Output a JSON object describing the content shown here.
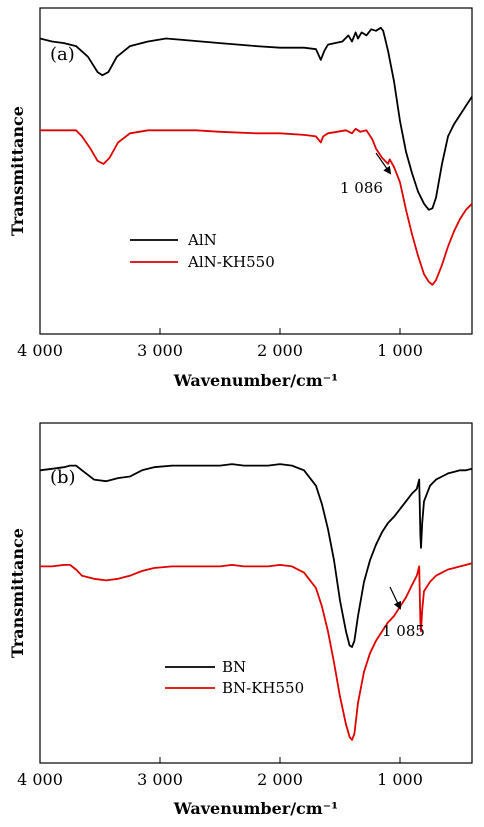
{
  "chart_data": [
    {
      "type": "line",
      "panel_label": "(a)",
      "xlabel": "Wavenumber/cm⁻¹",
      "ylabel": "Transmittance",
      "xlim": [
        4000,
        400
      ],
      "x_reversed": true,
      "ylim": [
        0,
        100
      ],
      "yticks_shown": false,
      "xticks": [
        4000,
        3000,
        2000,
        1000
      ],
      "xtick_labels": [
        "4 000",
        "3 000",
        "2 000",
        "1 000"
      ],
      "grid": false,
      "legend_position": "lower-left",
      "series": [
        {
          "name": "AlN",
          "color": "#000000",
          "points": [
            [
              4000,
              92
            ],
            [
              3900,
              91
            ],
            [
              3800,
              90.5
            ],
            [
              3700,
              89.5
            ],
            [
              3600,
              86
            ],
            [
              3520,
              81
            ],
            [
              3480,
              80
            ],
            [
              3430,
              81
            ],
            [
              3360,
              86
            ],
            [
              3250,
              89.5
            ],
            [
              3100,
              91
            ],
            [
              2950,
              92
            ],
            [
              2800,
              91.5
            ],
            [
              2500,
              90.5
            ],
            [
              2200,
              89.5
            ],
            [
              2000,
              89
            ],
            [
              1800,
              89
            ],
            [
              1700,
              88.5
            ],
            [
              1660,
              85
            ],
            [
              1630,
              88
            ],
            [
              1600,
              90
            ],
            [
              1480,
              91
            ],
            [
              1430,
              93
            ],
            [
              1400,
              91
            ],
            [
              1370,
              94
            ],
            [
              1350,
              92
            ],
            [
              1320,
              94
            ],
            [
              1280,
              93
            ],
            [
              1240,
              95
            ],
            [
              1200,
              94.5
            ],
            [
              1160,
              95.5
            ],
            [
              1140,
              94.5
            ],
            [
              1100,
              88
            ],
            [
              1050,
              78
            ],
            [
              1000,
              65
            ],
            [
              950,
              55
            ],
            [
              900,
              48
            ],
            [
              850,
              42
            ],
            [
              800,
              38
            ],
            [
              760,
              36
            ],
            [
              730,
              36.5
            ],
            [
              700,
              40
            ],
            [
              650,
              51
            ],
            [
              600,
              60
            ],
            [
              550,
              64
            ],
            [
              500,
              67
            ],
            [
              450,
              70
            ],
            [
              400,
              73
            ]
          ]
        },
        {
          "name": "AlN-KH550",
          "color": "#e00000",
          "points": [
            [
              4000,
              62
            ],
            [
              3900,
              62
            ],
            [
              3800,
              62
            ],
            [
              3700,
              62
            ],
            [
              3650,
              60
            ],
            [
              3580,
              56
            ],
            [
              3520,
              52
            ],
            [
              3470,
              51
            ],
            [
              3420,
              53
            ],
            [
              3350,
              58
            ],
            [
              3250,
              61
            ],
            [
              3100,
              62
            ],
            [
              2900,
              62
            ],
            [
              2700,
              62
            ],
            [
              2500,
              61.5
            ],
            [
              2200,
              61
            ],
            [
              2000,
              61
            ],
            [
              1800,
              60.5
            ],
            [
              1700,
              60
            ],
            [
              1660,
              58
            ],
            [
              1640,
              60
            ],
            [
              1600,
              61
            ],
            [
              1450,
              62
            ],
            [
              1400,
              61
            ],
            [
              1370,
              62.5
            ],
            [
              1330,
              61.5
            ],
            [
              1280,
              62
            ],
            [
              1230,
              59
            ],
            [
              1200,
              56
            ],
            [
              1150,
              53
            ],
            [
              1100,
              51
            ],
            [
              1086,
              52.5
            ],
            [
              1050,
              50
            ],
            [
              1000,
              45
            ],
            [
              950,
              36
            ],
            [
              900,
              28
            ],
            [
              850,
              21
            ],
            [
              800,
              15
            ],
            [
              760,
              12.5
            ],
            [
              730,
              11.5
            ],
            [
              700,
              13
            ],
            [
              650,
              18
            ],
            [
              600,
              24
            ],
            [
              550,
              29
            ],
            [
              500,
              33
            ],
            [
              450,
              36
            ],
            [
              400,
              38
            ]
          ]
        }
      ],
      "annotations": [
        {
          "text": "1 086",
          "x": 1086
        }
      ]
    },
    {
      "type": "line",
      "panel_label": "(b)",
      "xlabel": "Wavenumber/cm⁻¹",
      "ylabel": "Transmittance",
      "xlim": [
        4000,
        400
      ],
      "x_reversed": true,
      "ylim": [
        0,
        100
      ],
      "yticks_shown": false,
      "xticks": [
        4000,
        3000,
        2000,
        1000
      ],
      "xtick_labels": [
        "4 000",
        "3 000",
        "2 000",
        "1 000"
      ],
      "grid": false,
      "legend_position": "lower-left",
      "series": [
        {
          "name": "BN",
          "color": "#000000",
          "points": [
            [
              4000,
              87
            ],
            [
              3900,
              87.5
            ],
            [
              3800,
              88
            ],
            [
              3750,
              88.5
            ],
            [
              3700,
              88.5
            ],
            [
              3650,
              87
            ],
            [
              3550,
              84
            ],
            [
              3450,
              83.5
            ],
            [
              3350,
              84.5
            ],
            [
              3250,
              85
            ],
            [
              3150,
              87
            ],
            [
              3050,
              88
            ],
            [
              2900,
              88.5
            ],
            [
              2700,
              88.5
            ],
            [
              2500,
              88.5
            ],
            [
              2400,
              89
            ],
            [
              2300,
              88.5
            ],
            [
              2100,
              88.5
            ],
            [
              2000,
              89
            ],
            [
              1900,
              88.5
            ],
            [
              1800,
              87
            ],
            [
              1700,
              82
            ],
            [
              1650,
              76
            ],
            [
              1600,
              68
            ],
            [
              1550,
              58
            ],
            [
              1500,
              45
            ],
            [
              1450,
              35
            ],
            [
              1420,
              30.5
            ],
            [
              1400,
              30
            ],
            [
              1380,
              32
            ],
            [
              1350,
              40
            ],
            [
              1300,
              51
            ],
            [
              1250,
              58
            ],
            [
              1200,
              63
            ],
            [
              1150,
              67
            ],
            [
              1100,
              70
            ],
            [
              1050,
              72
            ],
            [
              1000,
              74.5
            ],
            [
              950,
              77
            ],
            [
              900,
              79.5
            ],
            [
              860,
              81
            ],
            [
              840,
              84
            ],
            [
              830,
              66
            ],
            [
              825,
              62
            ],
            [
              815,
              70
            ],
            [
              800,
              77
            ],
            [
              750,
              82
            ],
            [
              700,
              84
            ],
            [
              650,
              85
            ],
            [
              600,
              86
            ],
            [
              550,
              86.5
            ],
            [
              500,
              87
            ],
            [
              450,
              87
            ],
            [
              400,
              87.5
            ]
          ]
        },
        {
          "name": "BN-KH550",
          "color": "#e00000",
          "points": [
            [
              4000,
              56
            ],
            [
              3900,
              56
            ],
            [
              3800,
              56.5
            ],
            [
              3750,
              56.5
            ],
            [
              3700,
              55
            ],
            [
              3650,
              53
            ],
            [
              3550,
              52
            ],
            [
              3450,
              51.5
            ],
            [
              3350,
              52
            ],
            [
              3250,
              53
            ],
            [
              3150,
              54.5
            ],
            [
              3050,
              55.5
            ],
            [
              2900,
              56
            ],
            [
              2700,
              56
            ],
            [
              2500,
              56
            ],
            [
              2400,
              56.5
            ],
            [
              2300,
              56
            ],
            [
              2100,
              56
            ],
            [
              2000,
              56.5
            ],
            [
              1900,
              56
            ],
            [
              1800,
              54
            ],
            [
              1700,
              49
            ],
            [
              1650,
              43
            ],
            [
              1600,
              35
            ],
            [
              1550,
              25
            ],
            [
              1500,
              14
            ],
            [
              1450,
              5
            ],
            [
              1420,
              1
            ],
            [
              1400,
              0
            ],
            [
              1380,
              2
            ],
            [
              1350,
              12
            ],
            [
              1300,
              22
            ],
            [
              1250,
              28
            ],
            [
              1200,
              32
            ],
            [
              1150,
              35
            ],
            [
              1100,
              38
            ],
            [
              1085,
              38.5
            ],
            [
              1050,
              40
            ],
            [
              1000,
              43
            ],
            [
              950,
              46
            ],
            [
              900,
              50
            ],
            [
              860,
              53
            ],
            [
              840,
              56
            ],
            [
              830,
              38
            ],
            [
              825,
              35
            ],
            [
              815,
              42
            ],
            [
              800,
              48
            ],
            [
              750,
              51
            ],
            [
              700,
              53
            ],
            [
              650,
              54
            ],
            [
              600,
              55
            ],
            [
              550,
              55.5
            ],
            [
              500,
              56
            ],
            [
              450,
              56.5
            ],
            [
              400,
              57
            ]
          ]
        }
      ],
      "annotations": [
        {
          "text": "1 085",
          "x": 1085
        }
      ]
    }
  ]
}
